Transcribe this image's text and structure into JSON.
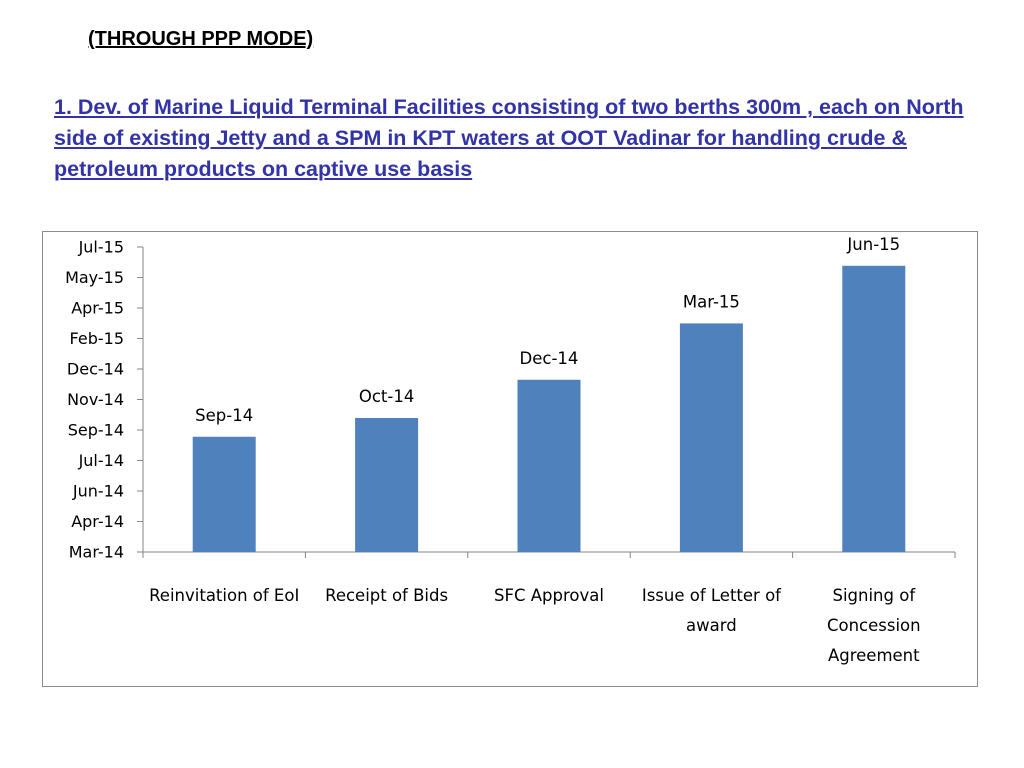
{
  "slide": {
    "mode_title": "(THROUGH PPP MODE)",
    "heading": "1. Dev. of Marine Liquid Terminal Facilities consisting of two berths 300m , each on North side of existing Jetty and a SPM in KPT waters at OOT Vadinar for handling crude & petroleum products on captive use basis"
  },
  "chart_data": {
    "type": "bar",
    "title": "",
    "xlabel": "",
    "ylabel": "",
    "categories": [
      [
        "Reinvitation of EoI"
      ],
      [
        "Receipt of Bids"
      ],
      [
        "SFC Approval"
      ],
      [
        "Issue of Letter of",
        "award"
      ],
      [
        "Signing of",
        "Concession",
        "Agreement"
      ]
    ],
    "values": [
      "2014-09-01",
      "2014-10-01",
      "2014-12-01",
      "2015-03-01",
      "2015-06-01"
    ],
    "data_labels": [
      "Sep-14",
      "Oct-14",
      "Dec-14",
      "Mar-15",
      "Jun-15"
    ],
    "y_ticks": [
      "Mar-14",
      "Apr-14",
      "Jun-14",
      "Jul-14",
      "Sep-14",
      "Nov-14",
      "Dec-14",
      "Feb-15",
      "Apr-15",
      "May-15",
      "Jul-15"
    ],
    "ylim": [
      "2014-03-01",
      "2015-07-01"
    ],
    "bar_color": "#4f81bd",
    "grid": false,
    "legend": "none"
  }
}
